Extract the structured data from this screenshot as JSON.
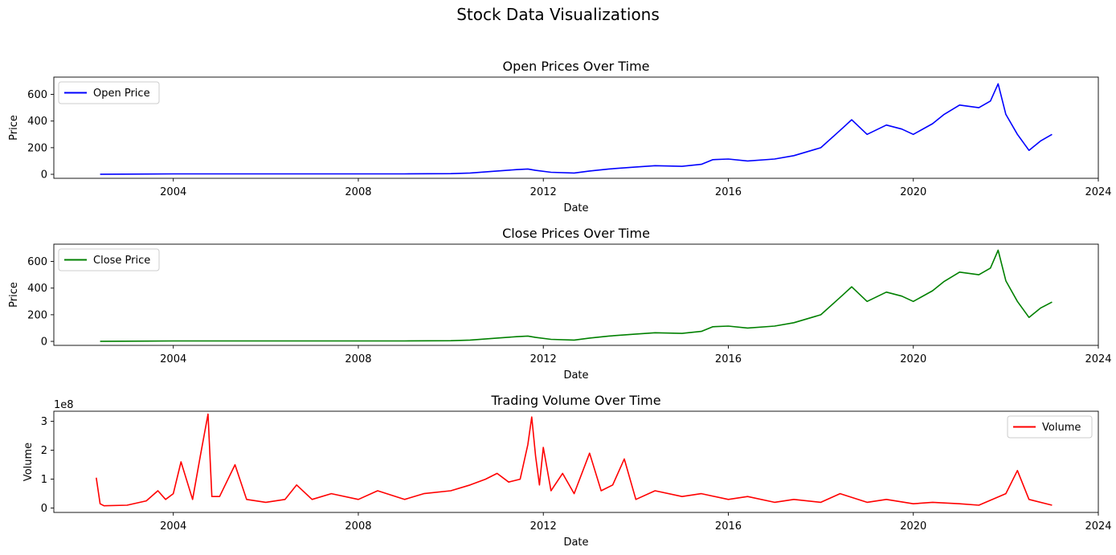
{
  "figure_title": "Stock Data Visualizations",
  "x_axis": {
    "type": "date",
    "range": [
      "2001-06-01",
      "2024-01-01"
    ],
    "ticks": [
      "2004",
      "2008",
      "2012",
      "2016",
      "2020",
      "2024"
    ]
  },
  "colors": {
    "open": "#0000ff",
    "close": "#008000",
    "volume": "#ff0000"
  },
  "chart_data": [
    {
      "type": "line",
      "title": "Open Prices Over Time",
      "xlabel": "Date",
      "ylabel": "Price",
      "ylim": [
        -30,
        730
      ],
      "yticks": [
        0,
        200,
        400,
        600
      ],
      "legend": "top-left",
      "grid": false,
      "series": [
        {
          "name": "Open Price",
          "color": "#0000ff",
          "x": [
            "2002-06",
            "2003-06",
            "2004-01",
            "2005-01",
            "2006-01",
            "2007-01",
            "2008-01",
            "2009-01",
            "2010-01",
            "2010-06",
            "2011-01",
            "2011-06",
            "2011-09",
            "2011-11",
            "2012-03",
            "2012-09",
            "2013-01",
            "2013-06",
            "2014-01",
            "2014-06",
            "2015-01",
            "2015-06",
            "2015-09",
            "2016-01",
            "2016-06",
            "2017-01",
            "2017-06",
            "2018-01",
            "2018-06",
            "2018-09",
            "2019-01",
            "2019-06",
            "2019-10",
            "2020-01",
            "2020-06",
            "2020-09",
            "2021-01",
            "2021-06",
            "2021-09",
            "2021-11",
            "2022-01",
            "2022-04",
            "2022-07",
            "2022-10",
            "2023-01"
          ],
          "values": [
            1,
            2,
            3,
            3,
            3,
            3,
            3,
            3,
            5,
            10,
            25,
            35,
            40,
            30,
            15,
            10,
            25,
            40,
            55,
            65,
            60,
            75,
            110,
            115,
            100,
            115,
            140,
            200,
            330,
            410,
            300,
            370,
            340,
            300,
            380,
            450,
            520,
            500,
            550,
            680,
            450,
            300,
            180,
            250,
            300
          ]
        }
      ]
    },
    {
      "type": "line",
      "title": "Close Prices Over Time",
      "xlabel": "Date",
      "ylabel": "Price",
      "ylim": [
        -30,
        730
      ],
      "yticks": [
        0,
        200,
        400,
        600
      ],
      "legend": "top-left",
      "grid": false,
      "series": [
        {
          "name": "Close Price",
          "color": "#008000",
          "x": [
            "2002-06",
            "2003-06",
            "2004-01",
            "2005-01",
            "2006-01",
            "2007-01",
            "2008-01",
            "2009-01",
            "2010-01",
            "2010-06",
            "2011-01",
            "2011-06",
            "2011-09",
            "2011-11",
            "2012-03",
            "2012-09",
            "2013-01",
            "2013-06",
            "2014-01",
            "2014-06",
            "2015-01",
            "2015-06",
            "2015-09",
            "2016-01",
            "2016-06",
            "2017-01",
            "2017-06",
            "2018-01",
            "2018-06",
            "2018-09",
            "2019-01",
            "2019-06",
            "2019-10",
            "2020-01",
            "2020-06",
            "2020-09",
            "2021-01",
            "2021-06",
            "2021-09",
            "2021-11",
            "2022-01",
            "2022-04",
            "2022-07",
            "2022-10",
            "2023-01"
          ],
          "values": [
            1,
            2,
            3,
            3,
            3,
            3,
            3,
            3,
            5,
            10,
            25,
            35,
            40,
            30,
            15,
            10,
            25,
            40,
            55,
            65,
            60,
            75,
            110,
            115,
            100,
            115,
            140,
            200,
            330,
            410,
            300,
            370,
            340,
            300,
            380,
            450,
            520,
            500,
            550,
            685,
            455,
            300,
            180,
            250,
            295
          ]
        }
      ]
    },
    {
      "type": "line",
      "title": "Trading Volume Over Time",
      "xlabel": "Date",
      "ylabel": "Volume",
      "y_scale_label": "1e8",
      "ylim": [
        -0.15,
        3.35
      ],
      "yticks": [
        0,
        1,
        2,
        3
      ],
      "legend": "top-right",
      "grid": false,
      "series": [
        {
          "name": "Volume",
          "color": "#ff0000",
          "x": [
            "2002-05",
            "2002-06",
            "2002-07",
            "2003-01",
            "2003-06",
            "2003-09",
            "2003-11",
            "2004-01",
            "2004-03",
            "2004-06",
            "2004-08",
            "2004-10",
            "2004-11",
            "2005-01",
            "2005-05",
            "2005-08",
            "2006-01",
            "2006-06",
            "2006-09",
            "2007-01",
            "2007-06",
            "2008-01",
            "2008-06",
            "2009-01",
            "2009-06",
            "2010-01",
            "2010-06",
            "2010-10",
            "2011-01",
            "2011-04",
            "2011-07",
            "2011-09",
            "2011-10",
            "2011-11",
            "2011-12",
            "2012-01",
            "2012-03",
            "2012-06",
            "2012-09",
            "2013-01",
            "2013-04",
            "2013-07",
            "2013-10",
            "2014-01",
            "2014-06",
            "2015-01",
            "2015-06",
            "2016-01",
            "2016-06",
            "2017-01",
            "2017-06",
            "2018-01",
            "2018-06",
            "2019-01",
            "2019-06",
            "2020-01",
            "2020-06",
            "2021-01",
            "2021-06",
            "2022-01",
            "2022-04",
            "2022-07",
            "2023-01"
          ],
          "values": [
            1.05,
            0.15,
            0.08,
            0.1,
            0.25,
            0.6,
            0.3,
            0.5,
            1.6,
            0.3,
            1.8,
            3.25,
            0.4,
            0.4,
            1.5,
            0.3,
            0.2,
            0.3,
            0.8,
            0.3,
            0.5,
            0.3,
            0.6,
            0.3,
            0.5,
            0.6,
            0.8,
            1.0,
            1.2,
            0.9,
            1.0,
            2.2,
            3.15,
            1.8,
            0.8,
            2.1,
            0.6,
            1.2,
            0.5,
            1.9,
            0.6,
            0.8,
            1.7,
            0.3,
            0.6,
            0.4,
            0.5,
            0.3,
            0.4,
            0.2,
            0.3,
            0.2,
            0.5,
            0.2,
            0.3,
            0.15,
            0.2,
            0.15,
            0.1,
            0.5,
            1.3,
            0.3,
            0.1
          ]
        }
      ]
    }
  ]
}
